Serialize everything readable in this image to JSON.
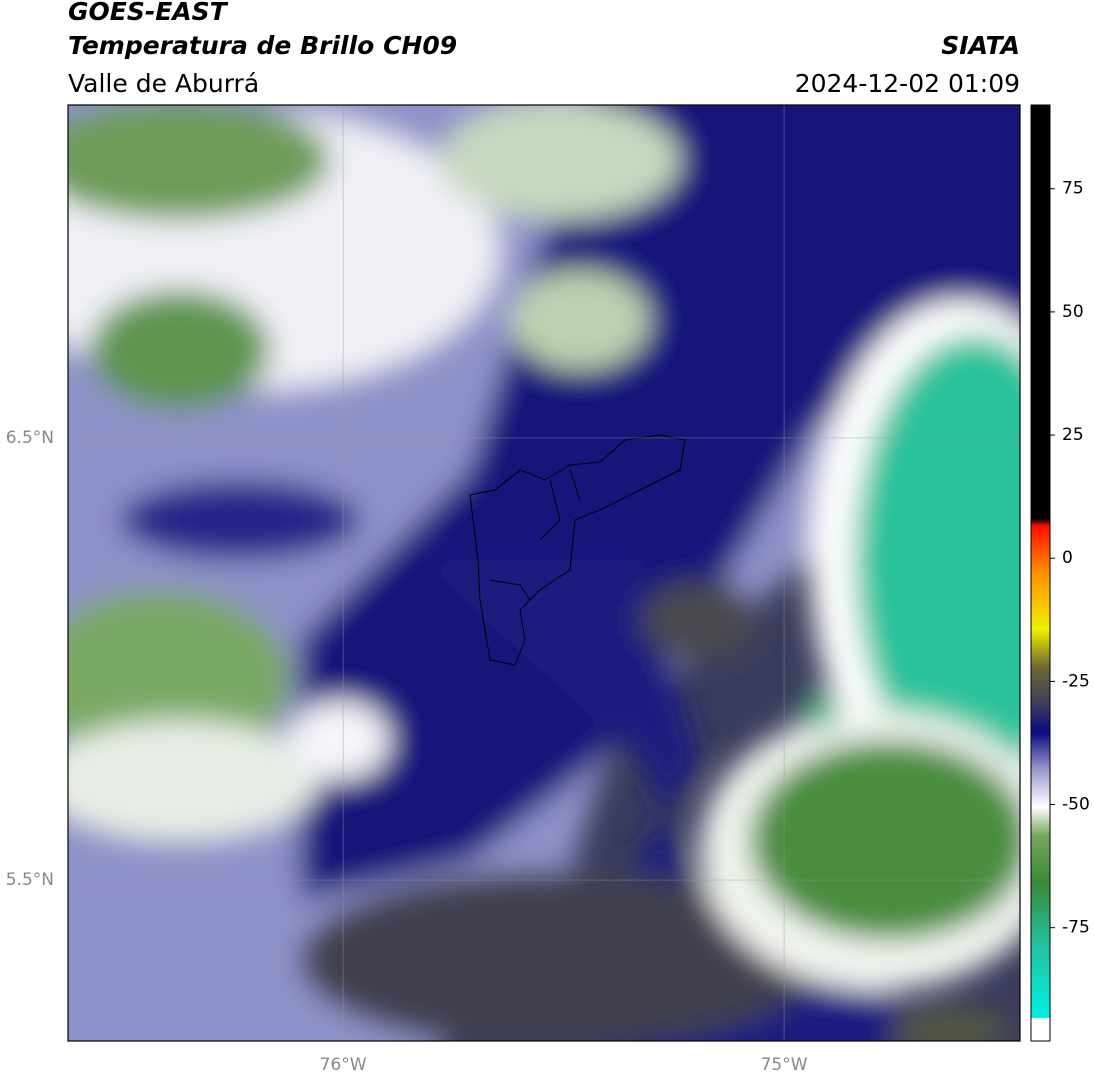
{
  "header": {
    "title": "GOES-EAST",
    "subtitle": "Temperatura de Brillo CH09",
    "region": "Valle de Aburrá",
    "source": "SIATA",
    "datetime": "2024-12-02 01:09"
  },
  "map": {
    "xlim": [
      -76.624,
      -74.465
    ],
    "ylim": [
      5.136,
      7.253
    ],
    "xticks": [
      {
        "value": -76,
        "label": "76°W"
      },
      {
        "value": -75,
        "label": "75°W"
      }
    ],
    "yticks": [
      {
        "value": 6.5,
        "label": "6.5°N"
      },
      {
        "value": 5.5,
        "label": "5.5°N"
      }
    ],
    "grid": true
  },
  "colorbar": {
    "lim": [
      -98,
      92
    ],
    "ticks": [
      75,
      50,
      25,
      0,
      -25,
      -50,
      -75
    ]
  }
}
